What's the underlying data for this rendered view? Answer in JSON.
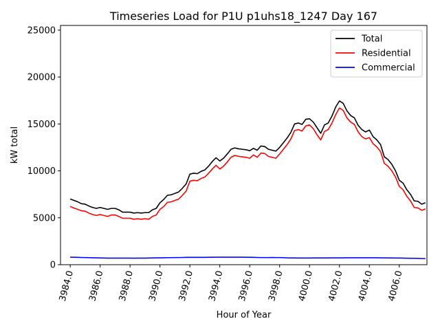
{
  "chart_data": {
    "type": "line",
    "title": "Timeseries Load for P1U p1uhs18_1247  Day 167",
    "xlabel": "Hour of Year",
    "ylabel": "kW total",
    "xlim": [
      3983.35,
      4007.85
    ],
    "ylim": [
      0,
      25500
    ],
    "xticks": [
      3984,
      3986,
      3988,
      3990,
      3992,
      3994,
      3996,
      3998,
      4000,
      4002,
      4004,
      4006
    ],
    "xtick_labels": [
      "3984.0",
      "3986.0",
      "3988.0",
      "3990.0",
      "3992.0",
      "3994.0",
      "3996.0",
      "3998.0",
      "4000.0",
      "4002.0",
      "4004.0",
      "4006.0"
    ],
    "yticks": [
      0,
      5000,
      10000,
      15000,
      20000,
      25000
    ],
    "ytick_labels": [
      "0",
      "5000",
      "10000",
      "15000",
      "20000",
      "25000"
    ],
    "legend_position": "upper right",
    "x_start": 3984.0,
    "x_step": 0.25,
    "series": [
      {
        "name": "Total",
        "color": "#000000",
        "values": [
          7000,
          6850,
          6700,
          6500,
          6450,
          6250,
          6100,
          6000,
          6100,
          6000,
          5900,
          6000,
          6000,
          5850,
          5600,
          5600,
          5600,
          5500,
          5550,
          5500,
          5550,
          5550,
          5850,
          6000,
          6600,
          6950,
          7400,
          7450,
          7600,
          7750,
          8150,
          8600,
          9650,
          9750,
          9700,
          9950,
          10100,
          10500,
          11000,
          11400,
          11050,
          11350,
          11800,
          12300,
          12450,
          12350,
          12300,
          12250,
          12150,
          12400,
          12200,
          12650,
          12600,
          12300,
          12200,
          12100,
          12500,
          13000,
          13500,
          14100,
          15000,
          15100,
          14950,
          15500,
          15550,
          15200,
          14600,
          14000,
          14900,
          15100,
          15850,
          16800,
          17450,
          17200,
          16400,
          15900,
          15650,
          14850,
          14400,
          14150,
          14350,
          13650,
          13300,
          12800,
          11500,
          11200,
          10700,
          10000,
          9000,
          8700,
          8000,
          7500,
          6800,
          6750,
          6450,
          6600
        ]
      },
      {
        "name": "Residential",
        "color": "#ff0000",
        "values": [
          6200,
          6050,
          5900,
          5750,
          5700,
          5500,
          5350,
          5250,
          5350,
          5250,
          5150,
          5300,
          5300,
          5150,
          4950,
          4950,
          4950,
          4850,
          4900,
          4850,
          4900,
          4850,
          5150,
          5300,
          5900,
          6200,
          6650,
          6700,
          6850,
          7000,
          7400,
          7850,
          8900,
          9000,
          8950,
          9200,
          9350,
          9750,
          10200,
          10600,
          10200,
          10500,
          10950,
          11450,
          11650,
          11550,
          11500,
          11450,
          11350,
          11700,
          11450,
          11900,
          11850,
          11550,
          11450,
          11350,
          11800,
          12300,
          12800,
          13400,
          14300,
          14400,
          14250,
          14800,
          14900,
          14500,
          13850,
          13300,
          14200,
          14400,
          15100,
          16000,
          16700,
          16450,
          15650,
          15200,
          14950,
          14150,
          13650,
          13400,
          13550,
          12900,
          12550,
          12050,
          10800,
          10500,
          10000,
          9350,
          8350,
          8000,
          7300,
          6800,
          6100,
          6050,
          5800,
          5950
        ]
      },
      {
        "name": "Commercial",
        "color": "#0000ff",
        "values": [
          800,
          790,
          780,
          770,
          760,
          750,
          740,
          730,
          720,
          710,
          700,
          700,
          700,
          700,
          700,
          700,
          700,
          690,
          700,
          700,
          700,
          710,
          720,
          730,
          730,
          740,
          750,
          750,
          760,
          760,
          770,
          780,
          780,
          780,
          780,
          780,
          780,
          790,
          790,
          800,
          800,
          800,
          800,
          800,
          800,
          800,
          800,
          790,
          790,
          780,
          770,
          760,
          760,
          760,
          770,
          760,
          760,
          750,
          730,
          720,
          720,
          710,
          710,
          710,
          710,
          720,
          720,
          720,
          720,
          720,
          730,
          730,
          730,
          730,
          740,
          740,
          740,
          740,
          740,
          740,
          740,
          740,
          740,
          730,
          730,
          720,
          720,
          710,
          710,
          700,
          690,
          680,
          680,
          670,
          660,
          650
        ]
      }
    ]
  }
}
